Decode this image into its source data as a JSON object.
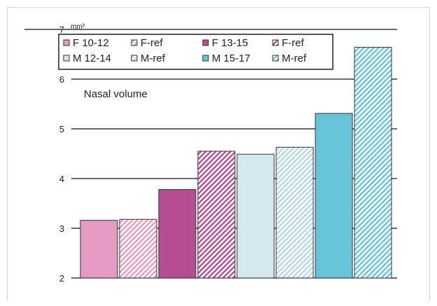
{
  "chart_data": {
    "type": "bar",
    "title": "",
    "annotation": "Nasal volume",
    "ylabel": "",
    "y_unit": "mm³",
    "ylim": [
      2,
      7
    ],
    "yticks": [
      2,
      3,
      4,
      5,
      6,
      7
    ],
    "grid": true,
    "legend_position": "top-left",
    "categories": [
      "F 10-12",
      "F-ref",
      "F 13-15",
      "F-ref",
      "M 12-14",
      "M-ref",
      "M 15-17",
      "M-ref"
    ],
    "values": [
      3.16,
      3.18,
      3.78,
      4.55,
      4.49,
      4.63,
      5.31,
      6.64
    ],
    "series_styles": [
      {
        "color": "#e49ac2",
        "hatched": false
      },
      {
        "color": "#e49ac2",
        "hatched": true
      },
      {
        "color": "#b44d94",
        "hatched": false
      },
      {
        "color": "#b44d94",
        "hatched": true
      },
      {
        "color": "#d5e8ee",
        "hatched": false
      },
      {
        "color": "#b6d7e3",
        "hatched": true
      },
      {
        "color": "#67c3d8",
        "hatched": false
      },
      {
        "color": "#67c3d8",
        "hatched": true
      }
    ]
  }
}
